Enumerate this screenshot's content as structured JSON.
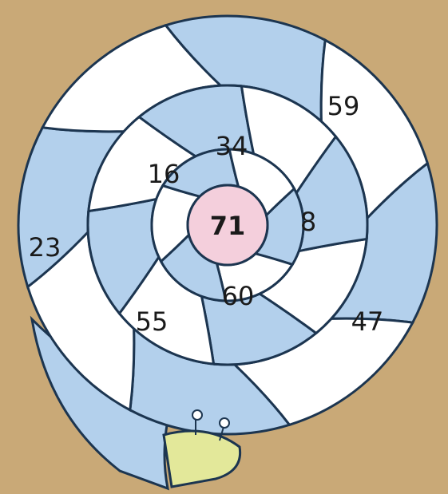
{
  "center": {
    "label": "71"
  },
  "cells": [
    {
      "label": "59"
    },
    {
      "label": "34"
    },
    {
      "label": "16"
    },
    {
      "label": "8"
    },
    {
      "label": "23"
    },
    {
      "label": "60"
    },
    {
      "label": "55"
    },
    {
      "label": "47"
    }
  ]
}
